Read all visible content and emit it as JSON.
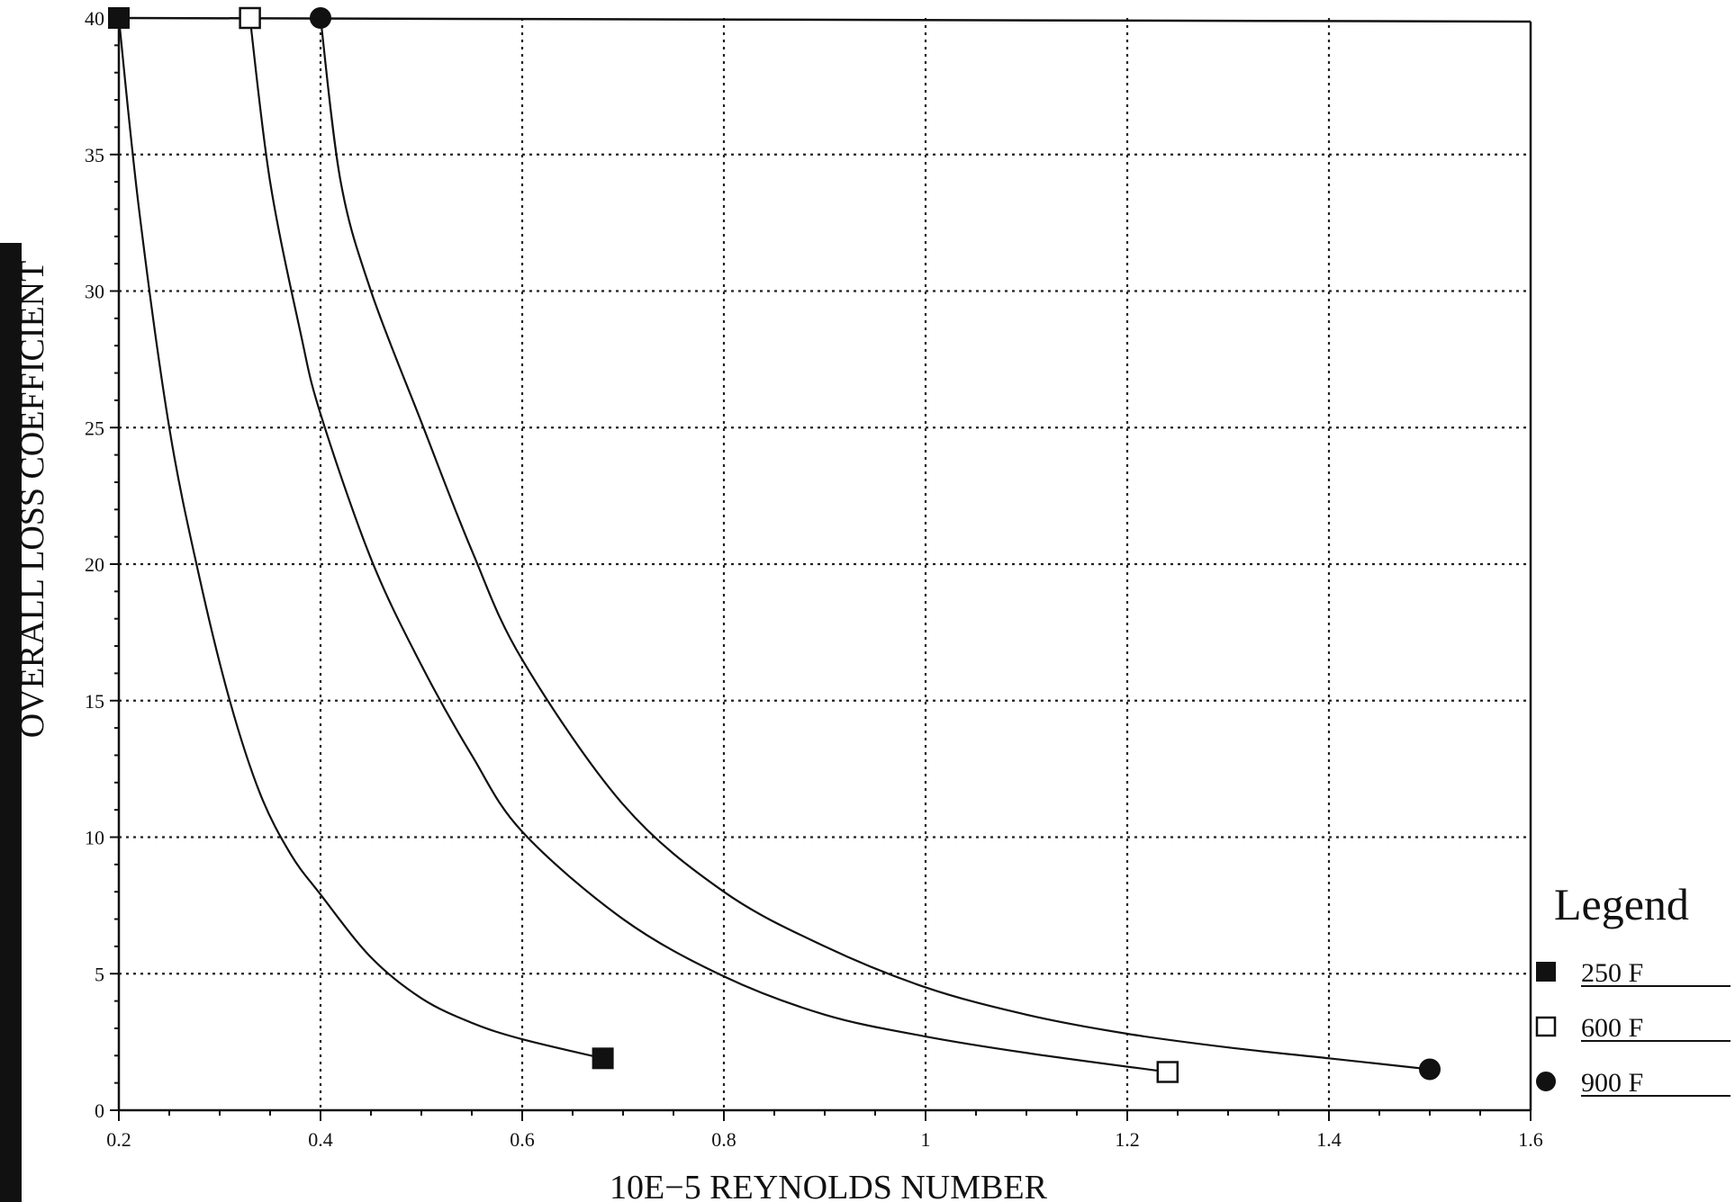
{
  "chart_data": {
    "type": "line",
    "title": "",
    "xlabel": "10E−5 REYNOLDS NUMBER",
    "ylabel": "OVERALL LOSS COEFFICIENT",
    "xlim": [
      0.2,
      1.6
    ],
    "ylim": [
      0,
      40
    ],
    "x_ticks": [
      "0.2",
      "0.4",
      "0.6",
      "0.8",
      "1",
      "1.2",
      "1.4",
      "1.6"
    ],
    "y_ticks": [
      "0",
      "5",
      "10",
      "15",
      "20",
      "25",
      "30",
      "35",
      "40"
    ],
    "grid": true,
    "legend": {
      "title": "Legend",
      "position": "right"
    },
    "series": [
      {
        "name": "250 F",
        "marker": "filled-square",
        "x": [
          0.2,
          0.22,
          0.25,
          0.28,
          0.31,
          0.34,
          0.37,
          0.4,
          0.45,
          0.5,
          0.55,
          0.6,
          0.68
        ],
        "y": [
          40,
          33,
          25,
          19.5,
          15,
          11.6,
          9.4,
          7.9,
          5.6,
          4.1,
          3.2,
          2.6,
          1.9
        ]
      },
      {
        "name": "600 F",
        "marker": "open-square",
        "x": [
          0.33,
          0.35,
          0.38,
          0.4,
          0.45,
          0.5,
          0.55,
          0.6,
          0.7,
          0.8,
          0.9,
          1.0,
          1.1,
          1.24
        ],
        "y": [
          40,
          34,
          28.5,
          25.5,
          20.2,
          16.3,
          13,
          10.2,
          7,
          4.9,
          3.5,
          2.7,
          2.1,
          1.4
        ]
      },
      {
        "name": "900 F",
        "marker": "filled-circle",
        "x": [
          0.4,
          0.42,
          0.45,
          0.5,
          0.55,
          0.6,
          0.7,
          0.8,
          0.9,
          1.0,
          1.1,
          1.2,
          1.3,
          1.4,
          1.5
        ],
        "y": [
          40,
          34,
          30,
          25.2,
          20.5,
          16.5,
          11.2,
          8,
          6,
          4.5,
          3.5,
          2.8,
          2.3,
          1.9,
          1.5
        ]
      }
    ]
  }
}
